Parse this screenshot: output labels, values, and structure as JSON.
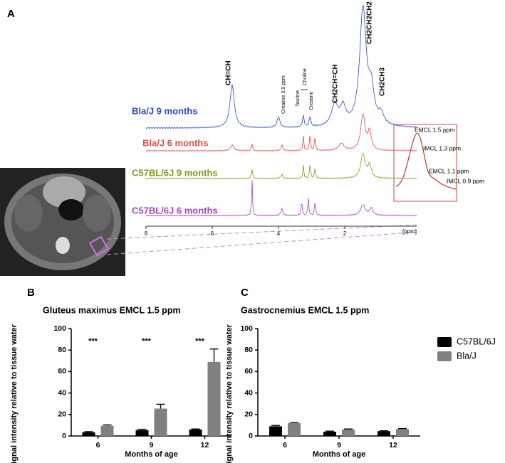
{
  "panel_a": {
    "label": "A",
    "traces": [
      {
        "name": "Bla/J 9 months",
        "color": "#2a49c8"
      },
      {
        "name": "Bla/J 6 months",
        "color": "#e0504a"
      },
      {
        "name": "C57BL/6J 9 months",
        "color": "#7f9a1e"
      },
      {
        "name": "C57BL/6J 6 months",
        "color": "#a046c0"
      }
    ],
    "peak_labels": [
      "CH=CH",
      "Creatine 3.9 ppm",
      "Taurine",
      "Choline",
      "Creatine",
      "CH2CH=CH",
      "CH2CH2CH2",
      "CH2CH3"
    ],
    "axis_ticks": [
      8,
      6,
      4,
      2
    ],
    "axis_unit": "[ppm]",
    "inset_labels": [
      "EMCL 1.5 ppm",
      "IMCL 1.3 ppm",
      "EMCL 1.1 ppm",
      "IMCL 0.9 ppm"
    ]
  },
  "chart_data": [
    {
      "type": "bar",
      "label": "B",
      "title": "Gluteus maximus EMCL 1.5 ppm",
      "ylabel": "Signal intensity relative to tissue water",
      "xlabel": "Months of age",
      "categories": [
        "6",
        "9",
        "12"
      ],
      "series": [
        {
          "color": "#000000",
          "values": [
            3.5,
            5.5,
            6
          ],
          "errors": [
            0.5,
            0.8,
            0.5
          ]
        },
        {
          "color": "#808080",
          "values": [
            9.5,
            25.5,
            69
          ],
          "errors": [
            0.8,
            4,
            12
          ]
        }
      ],
      "annotations": [
        "***",
        "***",
        "***"
      ],
      "ylim": [
        0,
        100
      ],
      "yticks": [
        0,
        20,
        40,
        60,
        80,
        100
      ]
    },
    {
      "type": "bar",
      "label": "C",
      "title": "Gastrocnemius EMCL 1.5 ppm",
      "ylabel": "Signal intensity relative to tissue water",
      "xlabel": "Months of age",
      "categories": [
        "6",
        "9",
        "12"
      ],
      "series": [
        {
          "name": "C57BL/6J",
          "color": "#000000",
          "values": [
            9,
            4,
            4.5
          ],
          "errors": [
            0.8,
            0.5,
            0.4
          ]
        },
        {
          "name": "Bla/J",
          "color": "#808080",
          "values": [
            12,
            6,
            6.5
          ],
          "errors": [
            0.6,
            0.5,
            0.4
          ]
        }
      ],
      "ylim": [
        0,
        100
      ],
      "yticks": [
        0,
        20,
        40,
        60,
        80,
        100
      ],
      "legend": "right"
    }
  ]
}
